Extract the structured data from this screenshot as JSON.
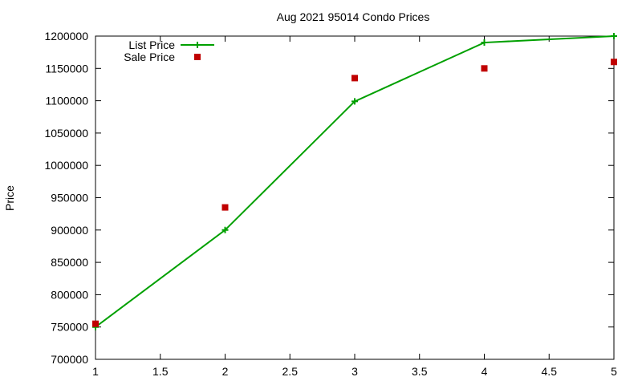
{
  "chart_data": {
    "type": "line",
    "title": "Aug 2021 95014 Condo Prices",
    "xlabel": "",
    "ylabel": "Price",
    "xlim": [
      1,
      5
    ],
    "ylim": [
      700000,
      1200000
    ],
    "x_ticks": [
      "1",
      "1.5",
      "2",
      "2.5",
      "3",
      "3.5",
      "4",
      "4.5",
      "5"
    ],
    "y_ticks": [
      "700000",
      "750000",
      "800000",
      "850000",
      "900000",
      "950000",
      "1000000",
      "1050000",
      "1100000",
      "1150000",
      "1200000"
    ],
    "grid": false,
    "legend_position": "top-left",
    "series": [
      {
        "name": "List Price",
        "style": "line+cross",
        "color": "#00a000",
        "x": [
          1,
          2,
          3,
          4,
          5
        ],
        "y": [
          750000,
          900000,
          1099000,
          1190000,
          1200000
        ]
      },
      {
        "name": "Sale Price",
        "style": "square",
        "color": "#c00000",
        "x": [
          1,
          2,
          3,
          4,
          5
        ],
        "y": [
          755000,
          935000,
          1135000,
          1150000,
          1160000
        ]
      }
    ]
  }
}
